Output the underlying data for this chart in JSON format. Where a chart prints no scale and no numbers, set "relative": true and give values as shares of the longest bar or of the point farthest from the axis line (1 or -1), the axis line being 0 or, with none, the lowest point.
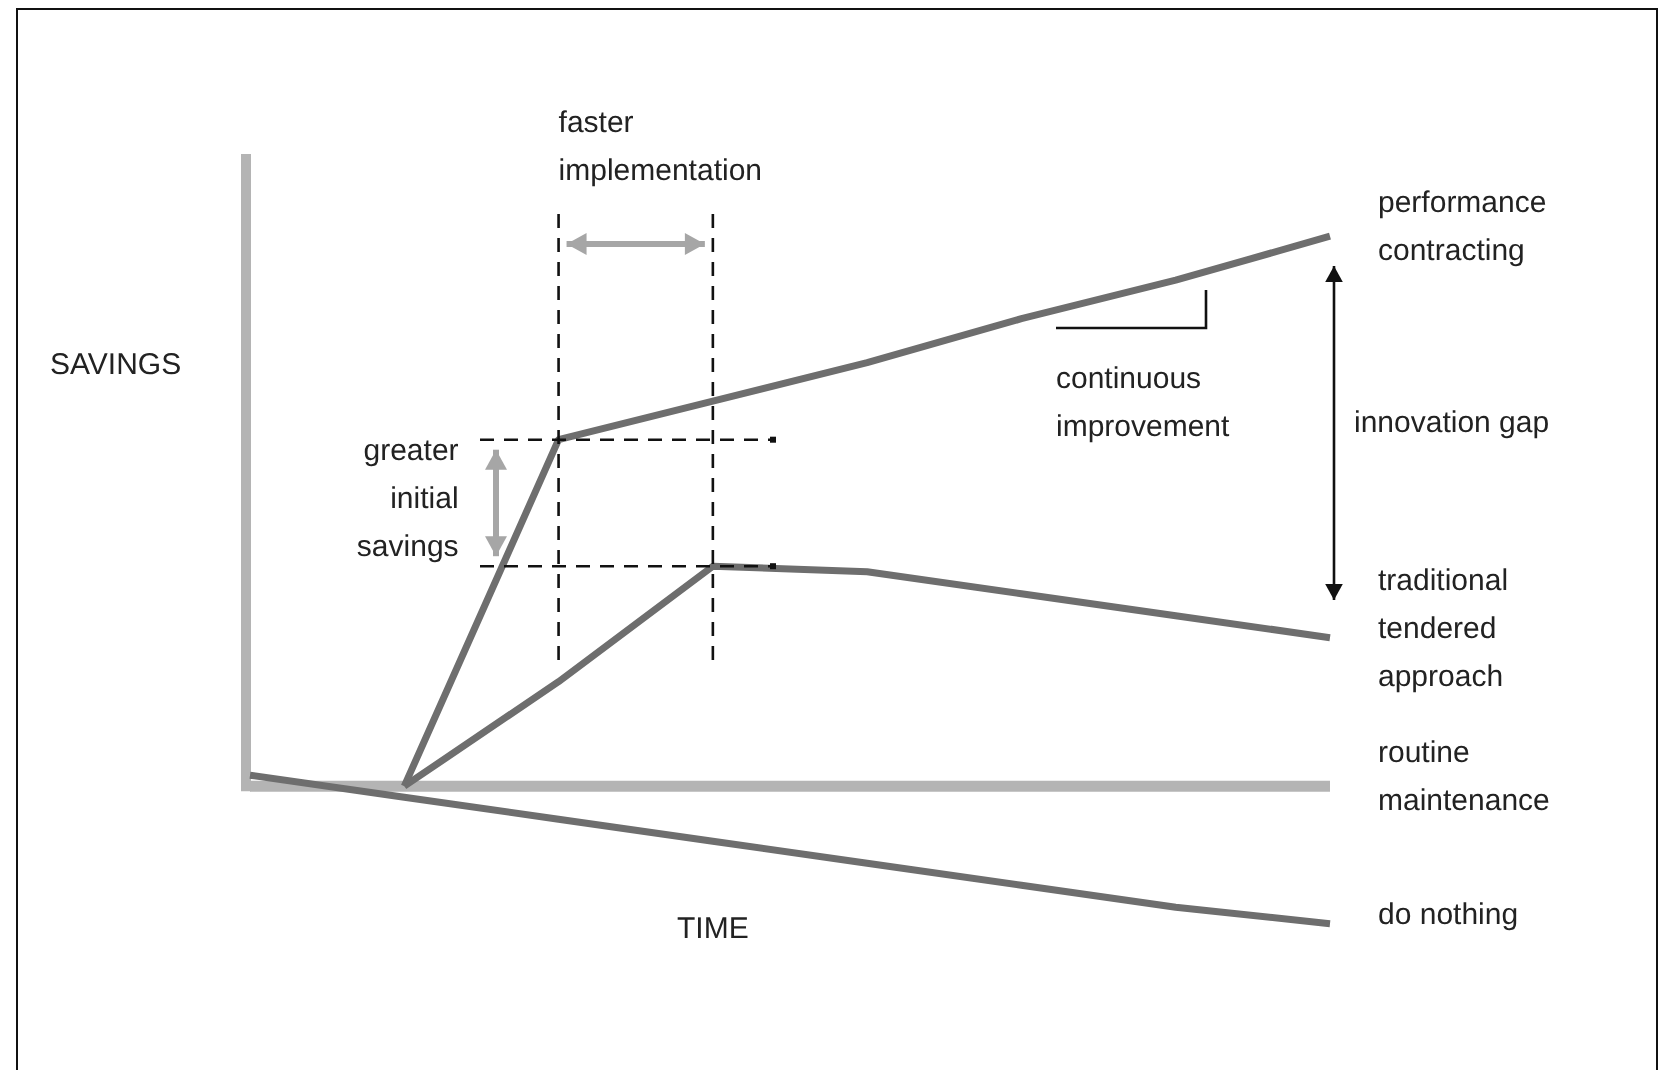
{
  "chart_data": {
    "type": "line",
    "relative": true,
    "xlabel": "TIME",
    "ylabel": "SAVINGS",
    "marker": "none",
    "legend": false,
    "categories": [
      null,
      null,
      null,
      null,
      null,
      null,
      null,
      null
    ],
    "series": [
      {
        "name": "performance contracting",
        "color": "#6e6e6e",
        "values": [
          null,
          0,
          0.63,
          0.7,
          0.77,
          0.85,
          0.92,
          1
        ]
      },
      {
        "name": "traditional tendered approach",
        "color": "#6e6e6e",
        "values": [
          null,
          0,
          0.19,
          0.4,
          0.39,
          0.35,
          0.31,
          0.27
        ]
      },
      {
        "name": "routine maintenance",
        "color": "#b4b4b4",
        "values": [
          0,
          0,
          0,
          0,
          0,
          0,
          0,
          0
        ]
      },
      {
        "name": "do nothing",
        "color": "#6e6e6e",
        "values": [
          0.02,
          -0.02,
          -0.06,
          -0.1,
          -0.14,
          -0.18,
          -0.22,
          -0.25
        ]
      }
    ],
    "annotations": [
      "faster implementation",
      "greater initial savings",
      "continuous improvement",
      "innovation gap"
    ]
  }
}
